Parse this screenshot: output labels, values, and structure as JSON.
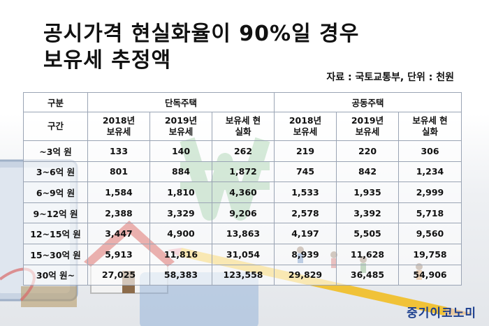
{
  "title_line1": "공시가격 현실화율이 90%일 경우",
  "title_line2": "보유세 추정액",
  "source_note": "자료 : 국토교통부, 단위 : 천원",
  "table": {
    "corner1": "구분",
    "group_detached": "단독주택",
    "group_apartment": "공동주택",
    "corner2": "구간",
    "col_2018": "2018년 보유세",
    "col_2019": "2019년 보유세",
    "col_real": "보유세 현실화",
    "rows": [
      {
        "range": "~3억 원",
        "d2018": "133",
        "d2019": "140",
        "dreal": "262",
        "a2018": "219",
        "a2019": "220",
        "areal": "306"
      },
      {
        "range": "3~6억 원",
        "d2018": "801",
        "d2019": "884",
        "dreal": "1,872",
        "a2018": "745",
        "a2019": "842",
        "areal": "1,234"
      },
      {
        "range": "6~9억 원",
        "d2018": "1,584",
        "d2019": "1,810",
        "dreal": "4,360",
        "a2018": "1,533",
        "a2019": "1,935",
        "areal": "2,999"
      },
      {
        "range": "9~12억 원",
        "d2018": "2,388",
        "d2019": "3,329",
        "dreal": "9,206",
        "a2018": "2,578",
        "a2019": "3,392",
        "areal": "5,718"
      },
      {
        "range": "12~15억 원",
        "d2018": "3,447",
        "d2019": "4,900",
        "dreal": "13,863",
        "a2018": "4,197",
        "a2019": "5,505",
        "areal": "9,560"
      },
      {
        "range": "15~30억 원",
        "d2018": "5,913",
        "d2019": "11,816",
        "dreal": "31,054",
        "a2018": "8,939",
        "a2019": "11,628",
        "areal": "19,758"
      },
      {
        "range": "30억 원~",
        "d2018": "27,025",
        "d2019": "58,383",
        "dreal": "123,558",
        "a2018": "29,829",
        "a2019": "36,485",
        "areal": "54,906"
      }
    ]
  },
  "logo": "중기이코노미",
  "colors": {
    "header_blue": "#bcccf0",
    "header_orange": "#facdaf",
    "logo_blue": "#1c3f8f"
  },
  "icons": [
    "won-sign-icon",
    "house-model-icon",
    "pencil-icon",
    "calculator-icon"
  ]
}
